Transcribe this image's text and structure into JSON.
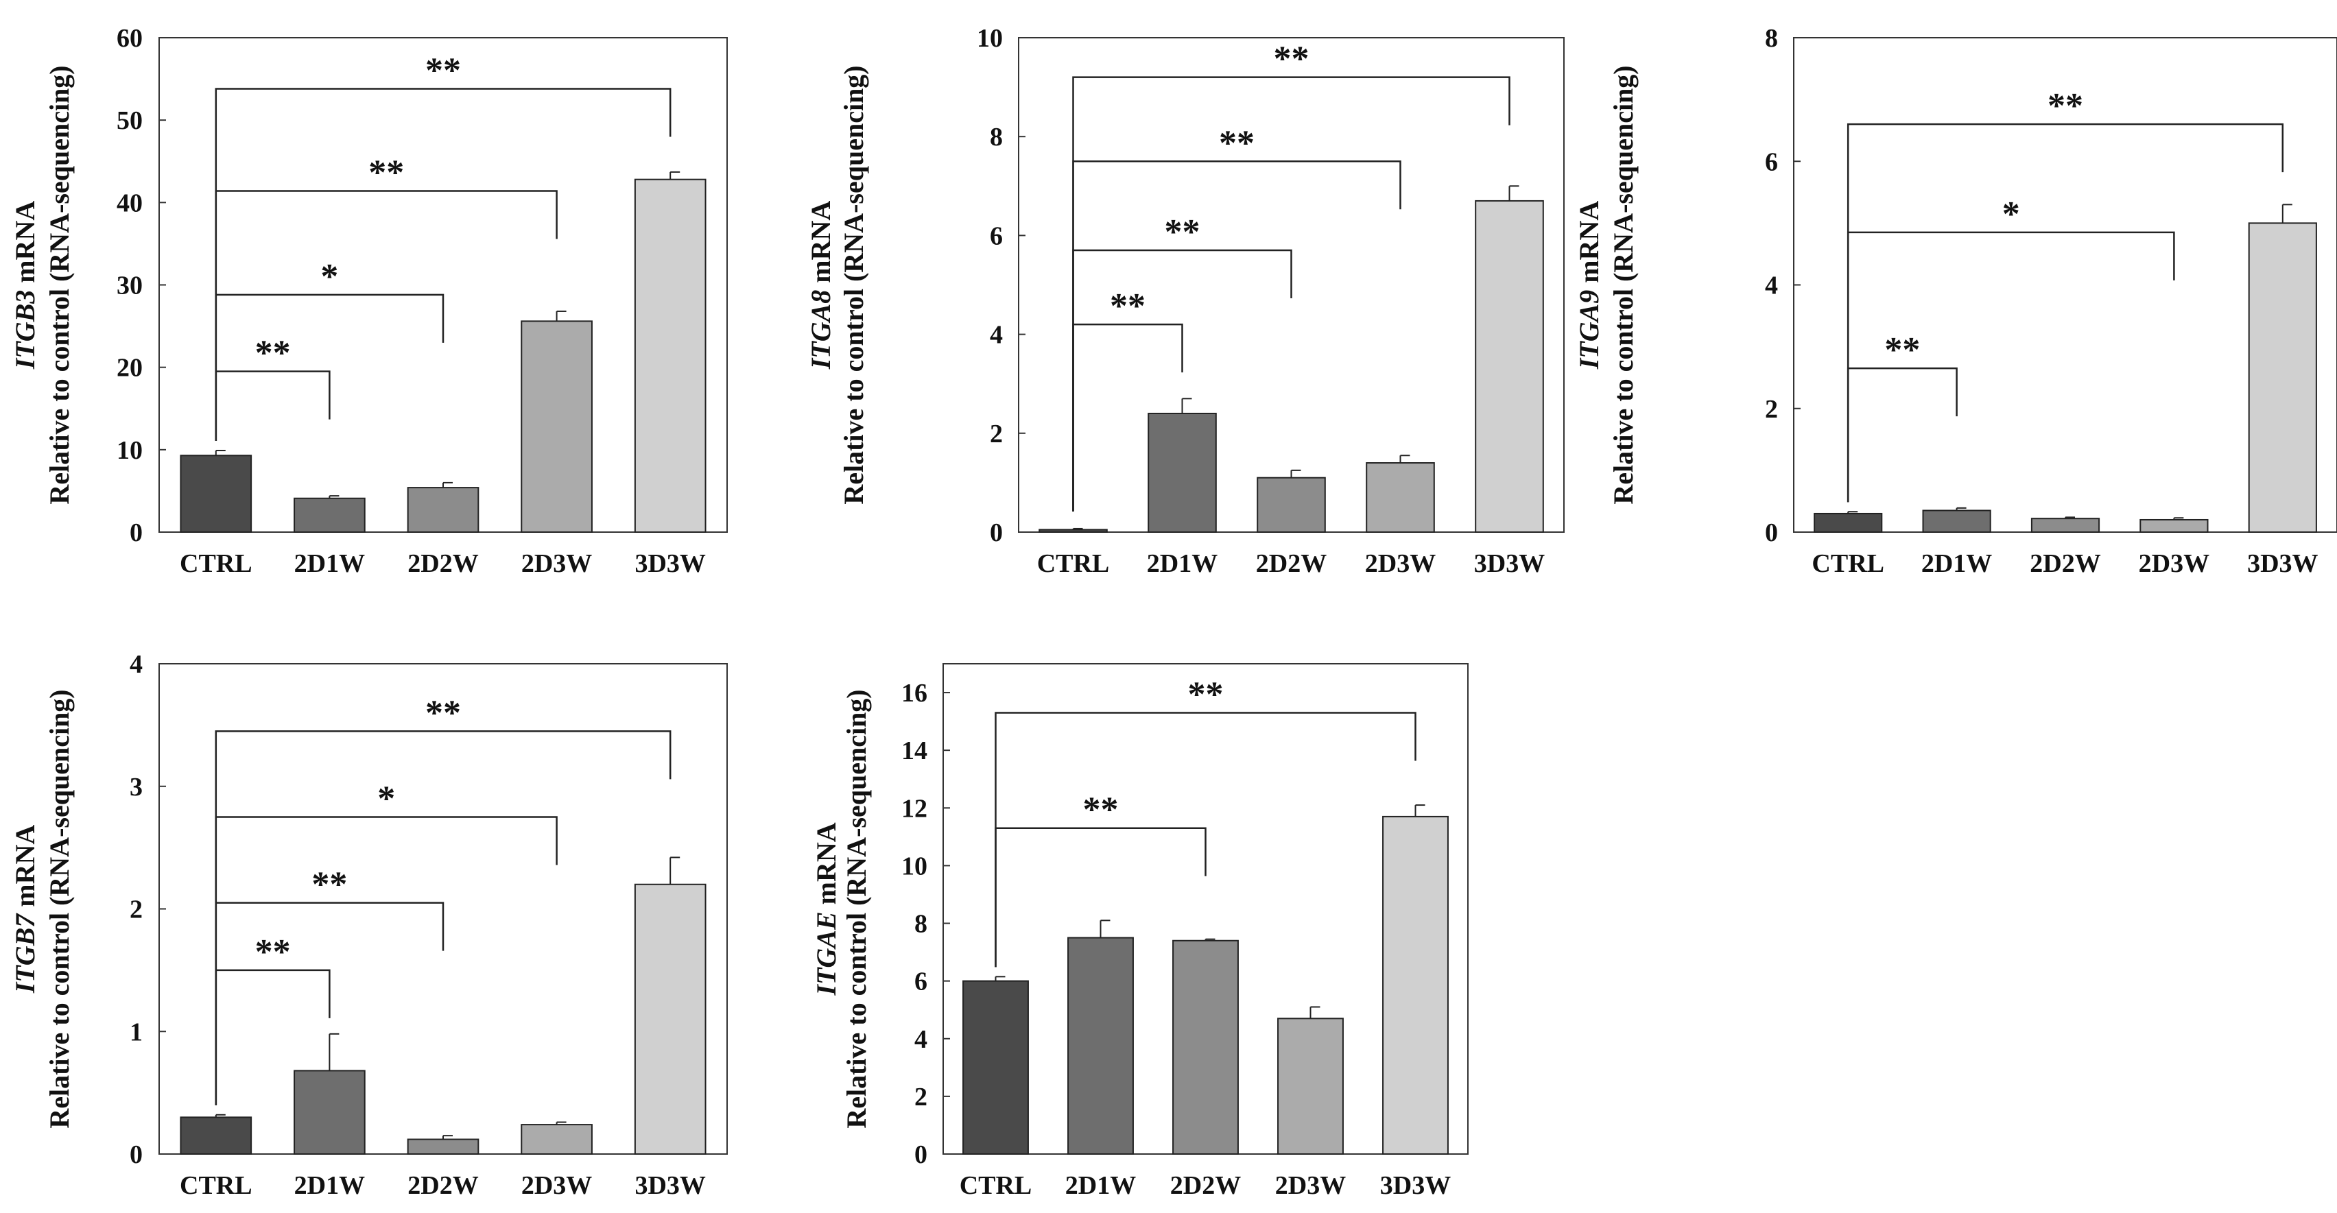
{
  "chart_data": [
    {
      "id": "itgb3",
      "type": "bar",
      "ylabel_gene": "ITGB3",
      "ylabel_suffix": " mRNA",
      "ylabel_line2": "Relative to control (RNA-sequencing)",
      "ylim": [
        0,
        60
      ],
      "yticks": [
        0,
        10,
        20,
        30,
        40,
        50,
        60
      ],
      "categories": [
        "CTRL",
        "2D1W",
        "2D2W",
        "2D3W",
        "3D3W"
      ],
      "values": [
        9.3,
        4.1,
        5.4,
        25.6,
        42.8
      ],
      "errors": [
        0.6,
        0.3,
        0.6,
        1.2,
        0.9
      ],
      "colors": [
        "#4a4a4a",
        "#6e6e6e",
        "#8c8c8c",
        "#ababab",
        "#d0d0d0"
      ],
      "significance": [
        {
          "to": 1,
          "label": "**",
          "level": 19.5
        },
        {
          "to": 2,
          "label": "*",
          "level": 28.8
        },
        {
          "to": 3,
          "label": "**",
          "level": 41.4
        },
        {
          "to": 4,
          "label": "**",
          "level": 53.8
        }
      ]
    },
    {
      "id": "itga8",
      "type": "bar",
      "ylabel_gene": "ITGA8",
      "ylabel_suffix": " mRNA",
      "ylabel_line2": "Relative to control (RNA-sequencing)",
      "ylim": [
        0,
        10
      ],
      "yticks": [
        0,
        2,
        4,
        6,
        8,
        10
      ],
      "categories": [
        "CTRL",
        "2D1W",
        "2D2W",
        "2D3W",
        "3D3W"
      ],
      "values": [
        0.05,
        2.4,
        1.1,
        1.4,
        6.7
      ],
      "errors": [
        0.02,
        0.3,
        0.15,
        0.15,
        0.3
      ],
      "colors": [
        "#4a4a4a",
        "#6e6e6e",
        "#8c8c8c",
        "#ababab",
        "#d0d0d0"
      ],
      "significance": [
        {
          "to": 1,
          "label": "**",
          "level": 4.2
        },
        {
          "to": 2,
          "label": "**",
          "level": 5.7
        },
        {
          "to": 3,
          "label": "**",
          "level": 7.5
        },
        {
          "to": 4,
          "label": "**",
          "level": 9.2
        }
      ]
    },
    {
      "id": "itga9",
      "type": "bar",
      "ylabel_gene": "ITGA9",
      "ylabel_suffix": " mRNA",
      "ylabel_line2": "Relative to control (RNA-sequencing)",
      "ylim": [
        0,
        8
      ],
      "yticks": [
        0,
        2,
        4,
        6,
        8
      ],
      "categories": [
        "CTRL",
        "2D1W",
        "2D2W",
        "2D3W",
        "3D3W"
      ],
      "values": [
        0.3,
        0.35,
        0.22,
        0.2,
        5.0
      ],
      "errors": [
        0.03,
        0.04,
        0.02,
        0.03,
        0.3
      ],
      "colors": [
        "#4a4a4a",
        "#6e6e6e",
        "#8c8c8c",
        "#ababab",
        "#d0d0d0"
      ],
      "significance": [
        {
          "to": 1,
          "label": "**",
          "level": 2.65
        },
        {
          "to": 3,
          "label": "*",
          "level": 4.85
        },
        {
          "to": 4,
          "label": "**",
          "level": 6.6
        }
      ]
    },
    {
      "id": "itgb7",
      "type": "bar",
      "ylabel_gene": "ITGB7",
      "ylabel_suffix": " mRNA",
      "ylabel_line2": "Relative to control (RNA-sequencing)",
      "ylim": [
        0,
        4
      ],
      "yticks": [
        0,
        1,
        2,
        3,
        4
      ],
      "categories": [
        "CTRL",
        "2D1W",
        "2D2W",
        "2D3W",
        "3D3W"
      ],
      "values": [
        0.3,
        0.68,
        0.12,
        0.24,
        2.2
      ],
      "errors": [
        0.02,
        0.3,
        0.03,
        0.02,
        0.22
      ],
      "colors": [
        "#4a4a4a",
        "#6e6e6e",
        "#8c8c8c",
        "#ababab",
        "#d0d0d0"
      ],
      "significance": [
        {
          "to": 1,
          "label": "**",
          "level": 1.5
        },
        {
          "to": 2,
          "label": "**",
          "level": 2.05
        },
        {
          "to": 3,
          "label": "*",
          "level": 2.75
        },
        {
          "to": 4,
          "label": "**",
          "level": 3.45
        }
      ]
    },
    {
      "id": "itgae",
      "type": "bar",
      "ylabel_gene": "ITGAE",
      "ylabel_suffix": " mRNA",
      "ylabel_line2": "Relative to control (RNA-sequencing)",
      "ylim": [
        0,
        17
      ],
      "yticks": [
        0,
        2,
        4,
        6,
        8,
        10,
        12,
        14,
        16
      ],
      "categories": [
        "CTRL",
        "2D1W",
        "2D2W",
        "2D3W",
        "3D3W"
      ],
      "values": [
        6.0,
        7.5,
        7.4,
        4.7,
        11.7
      ],
      "errors": [
        0.15,
        0.6,
        0.05,
        0.4,
        0.4
      ],
      "colors": [
        "#4a4a4a",
        "#6e6e6e",
        "#8c8c8c",
        "#ababab",
        "#d0d0d0"
      ],
      "significance": [
        {
          "to": 2,
          "label": "**",
          "level": 11.3
        },
        {
          "to": 4,
          "label": "**",
          "level": 15.3
        }
      ]
    }
  ]
}
